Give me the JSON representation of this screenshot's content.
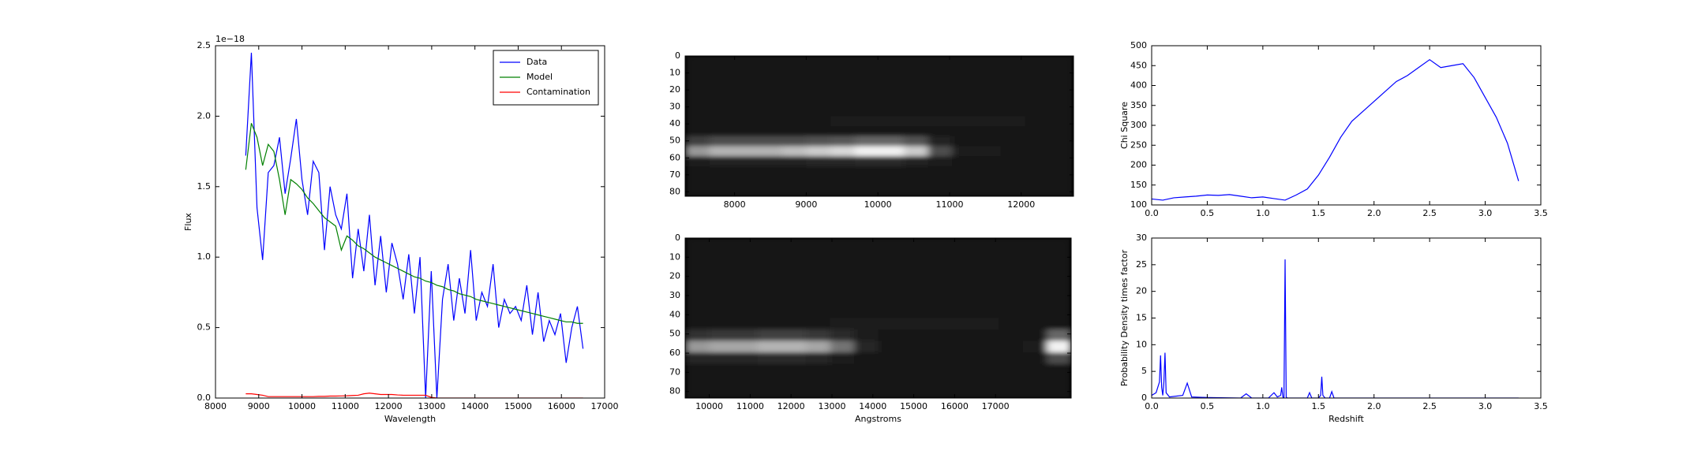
{
  "chart_data": [
    {
      "type": "line",
      "xlabel": "Wavelength",
      "ylabel": "Flux",
      "y_offset_label": "1e−18",
      "xlim": [
        8000,
        17000
      ],
      "ylim": [
        0,
        2.5
      ],
      "xticks": [
        8000,
        9000,
        10000,
        11000,
        12000,
        13000,
        14000,
        15000,
        16000,
        17000
      ],
      "yticks": [
        {
          "value": 0,
          "label": "0.0"
        },
        0.5,
        {
          "value": 1,
          "label": "1.0"
        },
        1.5,
        {
          "value": 2,
          "label": "2.0"
        },
        2.5
      ],
      "legend": "upper right",
      "x": [
        8700,
        8830,
        8960,
        9090,
        9220,
        9350,
        9480,
        9610,
        9740,
        9870,
        10000,
        10130,
        10260,
        10390,
        10520,
        10650,
        10780,
        10910,
        11040,
        11170,
        11300,
        11430,
        11560,
        11690,
        11820,
        11950,
        12080,
        12210,
        12340,
        12470,
        12600,
        12730,
        12860,
        12990,
        13120,
        13250,
        13380,
        13510,
        13640,
        13770,
        13900,
        14030,
        14160,
        14290,
        14420,
        14550,
        14680,
        14810,
        14940,
        15070,
        15200,
        15330,
        15460,
        15590,
        15720,
        15850,
        15980,
        16110,
        16240,
        16370,
        16500
      ],
      "series": [
        {
          "name": "Data",
          "color": "#0000ff",
          "values": [
            1.72,
            2.45,
            1.35,
            0.98,
            1.6,
            1.65,
            1.85,
            1.45,
            1.7,
            1.98,
            1.55,
            1.3,
            1.68,
            1.6,
            1.05,
            1.5,
            1.3,
            1.2,
            1.45,
            0.85,
            1.2,
            0.9,
            1.3,
            0.8,
            1.15,
            0.75,
            1.1,
            0.95,
            0.7,
            1.02,
            0.6,
            1.0,
            0,
            0.9,
            0,
            0.7,
            0.95,
            0.55,
            0.85,
            0.6,
            1.05,
            0.55,
            0.75,
            0.65,
            0.95,
            0.5,
            0.7,
            0.6,
            0.65,
            0.55,
            0.8,
            0.45,
            0.75,
            0.4,
            0.55,
            0.45,
            0.6,
            0.25,
            0.5,
            0.65,
            0.35
          ]
        },
        {
          "name": "Model",
          "color": "#008000",
          "values": [
            1.62,
            1.95,
            1.85,
            1.65,
            1.8,
            1.75,
            1.55,
            1.3,
            1.55,
            1.52,
            1.48,
            1.42,
            1.38,
            1.33,
            1.28,
            1.25,
            1.22,
            1.05,
            1.15,
            1.12,
            1.08,
            1.06,
            1.03,
            1.0,
            0.98,
            0.96,
            0.94,
            0.92,
            0.9,
            0.88,
            0.86,
            0.85,
            0.83,
            0.82,
            0.8,
            0.79,
            0.77,
            0.76,
            0.74,
            0.73,
            0.72,
            0.7,
            0.69,
            0.68,
            0.67,
            0.66,
            0.65,
            0.64,
            0.63,
            0.62,
            0.61,
            0.6,
            0.59,
            0.58,
            0.57,
            0.56,
            0.55,
            0.54,
            0.54,
            0.53,
            0.53
          ]
        },
        {
          "name": "Contamination",
          "color": "#ff0000",
          "values": [
            0.03,
            0.03,
            0.025,
            0.02,
            0.01,
            0.01,
            0.01,
            0.01,
            0.01,
            0.01,
            0.01,
            0.01,
            0.01,
            0.012,
            0.012,
            0.014,
            0.014,
            0.015,
            0.016,
            0.018,
            0.02,
            0.03,
            0.035,
            0.03,
            0.025,
            0.025,
            0.025,
            0.022,
            0.02,
            0.02,
            0.02,
            0.02,
            0.02,
            0.005,
            0,
            0,
            0,
            0,
            0,
            0,
            0,
            0,
            0,
            0,
            0,
            0,
            0,
            0,
            0,
            0,
            0,
            0,
            0,
            0,
            0,
            0,
            0,
            0,
            0,
            0,
            0
          ]
        }
      ]
    },
    {
      "type": "image",
      "xlim": [
        7310,
        12730
      ],
      "ylim": [
        82.6,
        0
      ],
      "xticks": [
        8000,
        9000,
        10000,
        11000,
        12000
      ],
      "yticks": [
        0,
        10,
        20,
        30,
        40,
        50,
        60,
        70,
        80
      ],
      "z": [
        [
          0.08,
          0.08,
          0.08,
          0.08,
          0.08,
          0.08,
          0.08,
          0.08,
          0.08,
          0.08,
          0.08,
          0.08,
          0.08,
          0.08,
          0.08,
          0.08
        ],
        [
          0.08,
          0.08,
          0.08,
          0.08,
          0.08,
          0.08,
          0.08,
          0.08,
          0.08,
          0.08,
          0.08,
          0.08,
          0.08,
          0.08,
          0.08,
          0.08
        ],
        [
          0.08,
          0.08,
          0.08,
          0.08,
          0.08,
          0.08,
          0.08,
          0.08,
          0.08,
          0.08,
          0.08,
          0.08,
          0.08,
          0.08,
          0.08,
          0.08
        ],
        [
          0.08,
          0.08,
          0.08,
          0.08,
          0.08,
          0.08,
          0.08,
          0.08,
          0.08,
          0.08,
          0.08,
          0.08,
          0.08,
          0.08,
          0.08,
          0.08
        ],
        [
          0.08,
          0.08,
          0.08,
          0.08,
          0.08,
          0.08,
          0.08,
          0.08,
          0.08,
          0.08,
          0.08,
          0.08,
          0.08,
          0.08,
          0.08,
          0.08
        ],
        [
          0.08,
          0.08,
          0.08,
          0.08,
          0.08,
          0.08,
          0.08,
          0.08,
          0.08,
          0.08,
          0.08,
          0.08,
          0.08,
          0.08,
          0.08,
          0.08
        ],
        [
          0.08,
          0.08,
          0.08,
          0.08,
          0.08,
          0.08,
          0.12,
          0.12,
          0.12,
          0.12,
          0.12,
          0.12,
          0.12,
          0.12,
          0.08,
          0.08
        ],
        [
          0.08,
          0.08,
          0.08,
          0.08,
          0.08,
          0.08,
          0.08,
          0.08,
          0.08,
          0.08,
          0.08,
          0.08,
          0.08,
          0.08,
          0.08,
          0.08
        ],
        [
          0.25,
          0.3,
          0.3,
          0.3,
          0.3,
          0.32,
          0.35,
          0.4,
          0.4,
          0.32,
          0.14,
          0.08,
          0.08,
          0.08,
          0.08,
          0.08
        ],
        [
          0.6,
          0.7,
          0.7,
          0.7,
          0.75,
          0.8,
          0.85,
          0.95,
          0.95,
          0.8,
          0.3,
          0.1,
          0.1,
          0.08,
          0.08,
          0.08
        ],
        [
          0.12,
          0.13,
          0.13,
          0.13,
          0.14,
          0.15,
          0.15,
          0.16,
          0.16,
          0.14,
          0.1,
          0.08,
          0.08,
          0.08,
          0.08,
          0.08
        ],
        [
          0.08,
          0.08,
          0.08,
          0.08,
          0.08,
          0.08,
          0.08,
          0.08,
          0.08,
          0.08,
          0.08,
          0.08,
          0.08,
          0.08,
          0.08,
          0.08
        ],
        [
          0.08,
          0.08,
          0.08,
          0.08,
          0.08,
          0.08,
          0.08,
          0.08,
          0.08,
          0.08,
          0.08,
          0.08,
          0.08,
          0.08,
          0.08,
          0.08
        ],
        [
          0.08,
          0.08,
          0.08,
          0.08,
          0.08,
          0.08,
          0.08,
          0.08,
          0.08,
          0.08,
          0.08,
          0.08,
          0.08,
          0.08,
          0.08,
          0.08
        ]
      ]
    },
    {
      "type": "image",
      "xlabel": "Angstroms",
      "xlim": [
        9410,
        18850
      ],
      "ylim": [
        83.4,
        0
      ],
      "xticks": [
        10000,
        11000,
        12000,
        13000,
        14000,
        15000,
        16000,
        17000
      ],
      "yticks": [
        0,
        10,
        20,
        30,
        40,
        50,
        60,
        70,
        80
      ],
      "z": [
        [
          0.08,
          0.08,
          0.08,
          0.08,
          0.08,
          0.08,
          0.08,
          0.08,
          0.08,
          0.08,
          0.08,
          0.08,
          0.08,
          0.08,
          0.08,
          0.08
        ],
        [
          0.08,
          0.08,
          0.08,
          0.08,
          0.08,
          0.08,
          0.08,
          0.08,
          0.08,
          0.08,
          0.08,
          0.08,
          0.08,
          0.08,
          0.08,
          0.08
        ],
        [
          0.08,
          0.08,
          0.08,
          0.08,
          0.08,
          0.08,
          0.08,
          0.08,
          0.08,
          0.08,
          0.08,
          0.08,
          0.08,
          0.08,
          0.08,
          0.08
        ],
        [
          0.08,
          0.08,
          0.08,
          0.08,
          0.08,
          0.08,
          0.08,
          0.08,
          0.08,
          0.08,
          0.08,
          0.08,
          0.08,
          0.08,
          0.08,
          0.08
        ],
        [
          0.08,
          0.08,
          0.08,
          0.08,
          0.08,
          0.08,
          0.08,
          0.08,
          0.08,
          0.08,
          0.08,
          0.08,
          0.08,
          0.08,
          0.08,
          0.08
        ],
        [
          0.08,
          0.08,
          0.08,
          0.08,
          0.08,
          0.08,
          0.08,
          0.08,
          0.08,
          0.08,
          0.08,
          0.08,
          0.08,
          0.08,
          0.08,
          0.08
        ],
        [
          0.08,
          0.08,
          0.08,
          0.08,
          0.08,
          0.08,
          0.08,
          0.08,
          0.08,
          0.08,
          0.08,
          0.08,
          0.08,
          0.08,
          0.08,
          0.08
        ],
        [
          0.08,
          0.08,
          0.08,
          0.08,
          0.08,
          0.08,
          0.1,
          0.1,
          0.1,
          0.1,
          0.1,
          0.1,
          0.1,
          0.08,
          0.08,
          0.08
        ],
        [
          0.2,
          0.22,
          0.22,
          0.25,
          0.25,
          0.22,
          0.16,
          0.1,
          0.08,
          0.08,
          0.08,
          0.08,
          0.08,
          0.08,
          0.08,
          0.4
        ],
        [
          0.6,
          0.65,
          0.65,
          0.7,
          0.7,
          0.65,
          0.45,
          0.15,
          0.08,
          0.08,
          0.08,
          0.08,
          0.08,
          0.08,
          0.12,
          0.95
        ],
        [
          0.15,
          0.15,
          0.15,
          0.16,
          0.16,
          0.15,
          0.12,
          0.08,
          0.08,
          0.08,
          0.08,
          0.08,
          0.08,
          0.08,
          0.08,
          0.3
        ],
        [
          0.08,
          0.08,
          0.08,
          0.08,
          0.08,
          0.08,
          0.08,
          0.08,
          0.08,
          0.08,
          0.08,
          0.08,
          0.08,
          0.08,
          0.08,
          0.08
        ],
        [
          0.08,
          0.08,
          0.08,
          0.08,
          0.08,
          0.08,
          0.08,
          0.08,
          0.08,
          0.08,
          0.08,
          0.08,
          0.08,
          0.08,
          0.08,
          0.08
        ],
        [
          0.08,
          0.08,
          0.08,
          0.08,
          0.08,
          0.08,
          0.08,
          0.08,
          0.08,
          0.08,
          0.08,
          0.08,
          0.08,
          0.08,
          0.08,
          0.08
        ]
      ]
    },
    {
      "type": "line",
      "ylabel": "Chi Square",
      "xlim": [
        0,
        3.5
      ],
      "ylim": [
        100,
        500
      ],
      "xticks": [
        {
          "value": 0,
          "label": "0.0"
        },
        0.5,
        {
          "value": 1,
          "label": "1.0"
        },
        1.5,
        {
          "value": 2,
          "label": "2.0"
        },
        2.5,
        {
          "value": 3,
          "label": "3.0"
        },
        3.5
      ],
      "yticks": [
        100,
        150,
        200,
        250,
        300,
        350,
        400,
        450,
        500
      ],
      "x": [
        0,
        0.1,
        0.2,
        0.3,
        0.4,
        0.5,
        0.6,
        0.7,
        0.8,
        0.9,
        1.0,
        1.1,
        1.2,
        1.3,
        1.4,
        1.5,
        1.6,
        1.7,
        1.8,
        1.9,
        2.0,
        2.1,
        2.2,
        2.3,
        2.4,
        2.5,
        2.6,
        2.7,
        2.8,
        2.9,
        3.0,
        3.1,
        3.2,
        3.3
      ],
      "series": [
        {
          "color": "#0000ff",
          "values": [
            115,
            112,
            118,
            120,
            122,
            125,
            124,
            126,
            122,
            118,
            120,
            116,
            112,
            125,
            140,
            175,
            220,
            270,
            310,
            335,
            360,
            385,
            410,
            425,
            445,
            465,
            445,
            450,
            455,
            420,
            370,
            320,
            255,
            160
          ]
        }
      ]
    },
    {
      "type": "line",
      "xlabel": "Redshift",
      "ylabel": "Probability Density times factor",
      "xlim": [
        0,
        3.5
      ],
      "ylim": [
        0,
        30
      ],
      "xticks": [
        {
          "value": 0,
          "label": "0.0"
        },
        0.5,
        {
          "value": 1,
          "label": "1.0"
        },
        1.5,
        {
          "value": 2,
          "label": "2.0"
        },
        2.5,
        {
          "value": 3,
          "label": "3.0"
        },
        3.5
      ],
      "yticks": [
        0,
        5,
        10,
        15,
        20,
        25,
        30
      ],
      "x": [
        0,
        0.04,
        0.07,
        0.08,
        0.09,
        0.1,
        0.11,
        0.12,
        0.13,
        0.16,
        0.28,
        0.32,
        0.36,
        0.5,
        0.8,
        0.85,
        0.9,
        1.05,
        1.1,
        1.13,
        1.16,
        1.17,
        1.18,
        1.19,
        1.2,
        1.21,
        1.22,
        1.3,
        1.4,
        1.42,
        1.44,
        1.5,
        1.52,
        1.53,
        1.54,
        1.56,
        1.6,
        1.62,
        1.64,
        1.8,
        3.3
      ],
      "series": [
        {
          "color": "#0000ff",
          "values": [
            0.5,
            1,
            3,
            8,
            2,
            0.5,
            3,
            8.5,
            1,
            0.2,
            0.5,
            2.8,
            0.2,
            0.1,
            0,
            0.8,
            0,
            0,
            1,
            0.2,
            0.5,
            2,
            0.2,
            0,
            26,
            0.2,
            0,
            0,
            0,
            1,
            0,
            0,
            0.5,
            4,
            0.5,
            0,
            0,
            1.2,
            0,
            0,
            0
          ]
        }
      ]
    }
  ]
}
